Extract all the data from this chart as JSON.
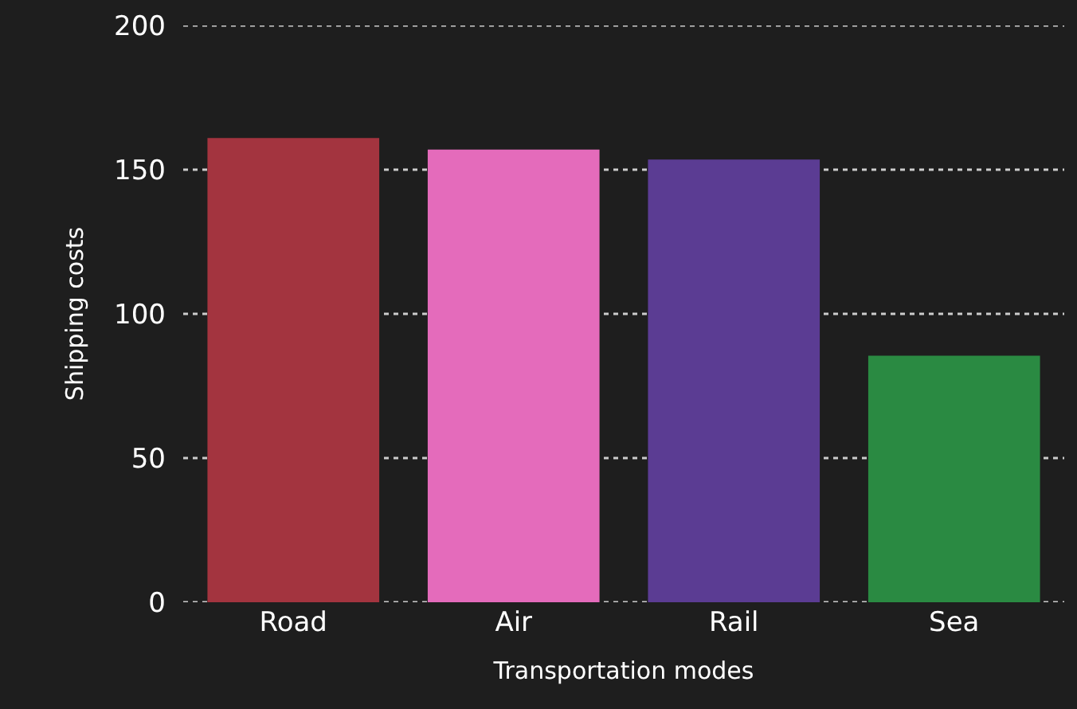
{
  "chart_data": {
    "type": "bar",
    "xlabel": "Transportation modes",
    "ylabel": "Shipping costs",
    "categories": [
      "Road",
      "Air",
      "Rail",
      "Sea"
    ],
    "values": [
      161,
      157,
      153.5,
      85.5
    ],
    "colors": [
      "#a3343f",
      "#e46bbb",
      "#5b3c93",
      "#2a8a42"
    ],
    "ylim": [
      0,
      200
    ],
    "yticks": [
      0,
      50,
      100,
      150,
      200
    ],
    "grid": "y"
  }
}
